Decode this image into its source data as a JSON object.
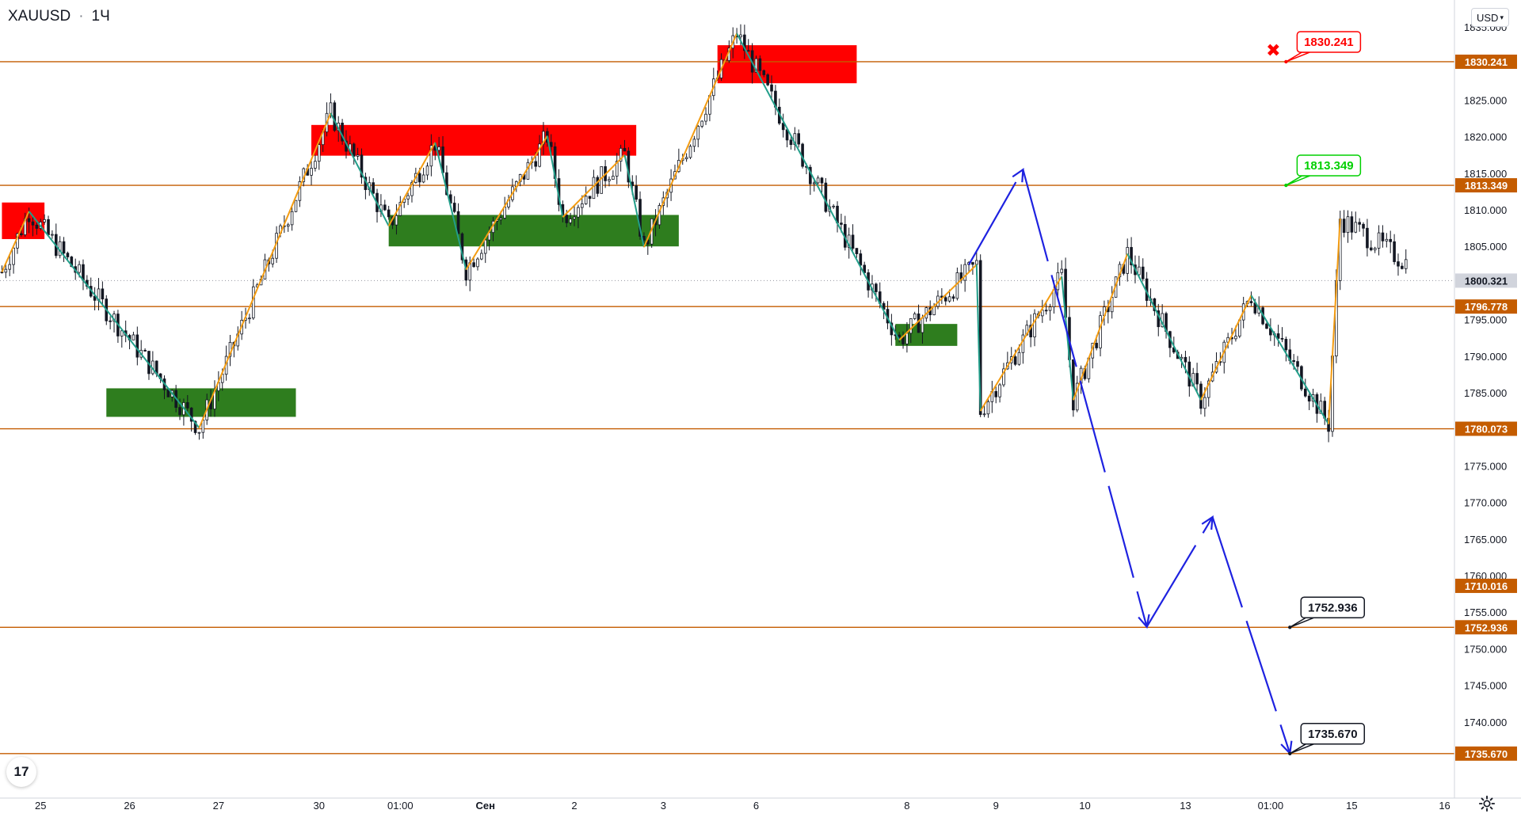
{
  "header": {
    "symbol": "XAUUSD",
    "interval": "1Ч",
    "sep": "·"
  },
  "currency_label": "USD",
  "logo_text": "17",
  "colors": {
    "level": "#c45c00",
    "supply": "#ff0000",
    "demand": "#2e7d1e",
    "zig_up": "#f39c12",
    "zig_down": "#229e8a",
    "forecast": "#1e22e0",
    "candle": "#131722",
    "stop": "#ff0000",
    "target": "#00d000",
    "tp": "#131722"
  },
  "icons": {
    "stop_marker": "x-mark-icon",
    "settings": "gear-icon",
    "logo": "tradingview-logo-icon"
  },
  "chart_data": {
    "type": "candlestick",
    "y_range": [
      1730,
      1836
    ],
    "y_ticks": [
      "1835.000",
      "1830.000",
      "1825.000",
      "1820.000",
      "1815.000",
      "1810.000",
      "1805.000",
      "1800.000",
      "1795.000",
      "1790.000",
      "1785.000",
      "1780.000",
      "1775.000",
      "1770.000",
      "1765.000",
      "1760.000",
      "1755.000",
      "1750.000",
      "1745.000",
      "1740.000"
    ],
    "x_labels": [
      "25",
      "26",
      "27",
      "30",
      "01:00",
      "Сен",
      "2",
      "3",
      "6",
      "8",
      "9",
      "10",
      "13",
      "01:00",
      "15",
      "16"
    ],
    "x_label_bars": [
      10,
      33,
      56,
      82,
      103,
      125,
      148,
      171,
      195,
      234,
      257,
      280,
      306,
      328,
      349,
      373
    ],
    "total_bars": 374,
    "current_price": "1800.321",
    "levels": [
      {
        "price": 1830.241,
        "label": "1830.241"
      },
      {
        "price": 1813.349,
        "label": "1813.349"
      },
      {
        "price": 1796.778,
        "label": "1796.778"
      },
      {
        "price": 1780.073,
        "label": "1780.073"
      },
      {
        "price": 1752.936,
        "label": "1752.936"
      },
      {
        "price": 1735.67,
        "label": "1735.670"
      }
    ],
    "axis_tag_1710": "1710.016",
    "callouts": [
      {
        "label": "1830.241",
        "kind": "stop",
        "bar": 332,
        "price": 1830.241
      },
      {
        "label": "1813.349",
        "kind": "target",
        "bar": 332,
        "price": 1813.349
      },
      {
        "label": "1752.936",
        "kind": "tp",
        "bar": 333,
        "price": 1752.936
      },
      {
        "label": "1735.670",
        "kind": "tp",
        "bar": 333,
        "price": 1735.67
      }
    ],
    "supply_zones": [
      {
        "b1": 0,
        "b2": 11,
        "top": 1811.0,
        "bottom": 1806.0
      },
      {
        "b1": 80,
        "b2": 164,
        "top": 1821.6,
        "bottom": 1817.4
      },
      {
        "b1": 185,
        "b2": 221,
        "top": 1832.5,
        "bottom": 1827.3
      }
    ],
    "demand_zones": [
      {
        "b1": 27,
        "b2": 76,
        "top": 1785.6,
        "bottom": 1781.7
      },
      {
        "b1": 100,
        "b2": 175,
        "top": 1809.3,
        "bottom": 1805.0
      },
      {
        "b1": 231,
        "b2": 247,
        "top": 1794.4,
        "bottom": 1791.4
      }
    ],
    "zigzag": [
      [
        0,
        1801.5
      ],
      [
        7,
        1809.8
      ],
      [
        51,
        1780.2
      ],
      [
        85,
        1823.2
      ],
      [
        100,
        1807.8
      ],
      [
        112,
        1819.2
      ],
      [
        120,
        1801.8
      ],
      [
        141,
        1820.1
      ],
      [
        145,
        1809.0
      ],
      [
        161,
        1817.5
      ],
      [
        166,
        1804.9
      ],
      [
        190,
        1834.1
      ],
      [
        232,
        1792.2
      ],
      [
        252,
        1802.5
      ],
      [
        253,
        1782.5
      ],
      [
        274,
        1800.9
      ],
      [
        277,
        1784.0
      ],
      [
        291,
        1804.0
      ],
      [
        310,
        1784.0
      ],
      [
        323,
        1798.3
      ],
      [
        343,
        1780.7
      ],
      [
        346,
        1808.8
      ]
    ],
    "forecast_path": [
      [
        250,
        1802.5
      ],
      [
        264,
        1815.5
      ],
      [
        296,
        1753.0
      ],
      [
        313,
        1768.0
      ],
      [
        333,
        1735.7
      ]
    ],
    "candles_drawn_to_bar": 363
  }
}
